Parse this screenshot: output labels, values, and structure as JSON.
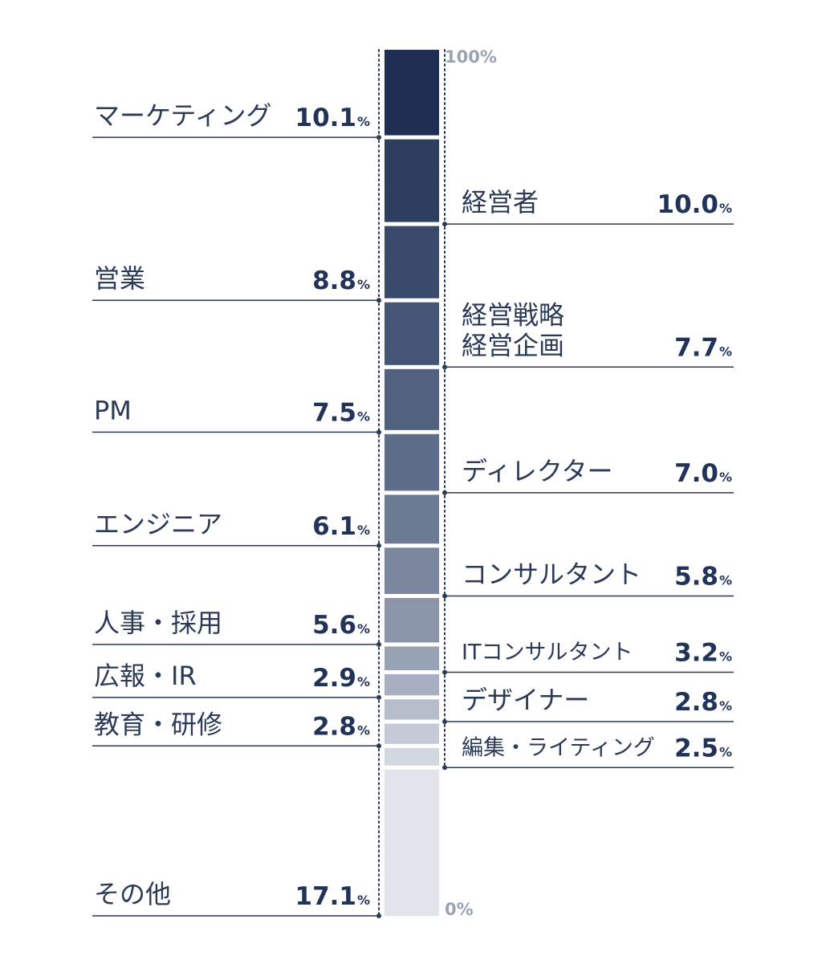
{
  "chart_data": {
    "type": "stacked-bar",
    "ylim": [
      0,
      100
    ],
    "grid": false,
    "legend": "none",
    "axis_labels": {
      "top": "100%",
      "bottom": "0%"
    },
    "unit": "%",
    "segments": [
      {
        "category": "マーケティング",
        "lines": [
          "マーケティング"
        ],
        "value": 10.1,
        "value_label": "10.1",
        "side": "left",
        "color": "#1f2f54"
      },
      {
        "category": "経営者",
        "lines": [
          "経営者"
        ],
        "value": 10.0,
        "value_label": "10.0",
        "side": "right",
        "color": "#2e3e5f"
      },
      {
        "category": "営業",
        "lines": [
          "営業"
        ],
        "value": 8.8,
        "value_label": "8.8",
        "side": "left",
        "color": "#3a4a6b"
      },
      {
        "category": "経営戦略 経営企画",
        "lines": [
          "経営戦略",
          "経営企画"
        ],
        "value": 7.7,
        "value_label": "7.7",
        "side": "right",
        "color": "#455576"
      },
      {
        "category": "PM",
        "lines": [
          "PM"
        ],
        "value": 7.5,
        "value_label": "7.5",
        "side": "left",
        "color": "#52617f"
      },
      {
        "category": "ディレクター",
        "lines": [
          "ディレクター"
        ],
        "value": 7.0,
        "value_label": "7.0",
        "side": "right",
        "color": "#5f6d89"
      },
      {
        "category": "エンジニア",
        "lines": [
          "エンジニア"
        ],
        "value": 6.1,
        "value_label": "6.1",
        "side": "left",
        "color": "#6d7a94"
      },
      {
        "category": "コンサルタント",
        "lines": [
          "コンサルタント"
        ],
        "value": 5.8,
        "value_label": "5.8",
        "side": "right",
        "color": "#7b879f"
      },
      {
        "category": "人事・採用",
        "lines": [
          "人事・採用"
        ],
        "value": 5.6,
        "value_label": "5.6",
        "side": "left",
        "color": "#8a95aa"
      },
      {
        "category": "ITコンサルタント",
        "lines": [
          "ITコンサルタント"
        ],
        "value": 3.2,
        "value_label": "3.2",
        "side": "right",
        "color": "#98a2b5"
      },
      {
        "category": "広報・IR",
        "lines": [
          "広報・IR"
        ],
        "value": 2.9,
        "value_label": "2.9",
        "side": "left",
        "color": "#a7afc0"
      },
      {
        "category": "デザイナー",
        "lines": [
          "デザイナー"
        ],
        "value": 2.8,
        "value_label": "2.8",
        "side": "right",
        "color": "#b6bdcb"
      },
      {
        "category": "教育・研修",
        "lines": [
          "教育・研修"
        ],
        "value": 2.8,
        "value_label": "2.8",
        "side": "left",
        "color": "#c5cad6"
      },
      {
        "category": "編集・ライティング",
        "lines": [
          "編集・ライティング"
        ],
        "value": 2.5,
        "value_label": "2.5",
        "side": "right",
        "color": "#d3d7e0"
      },
      {
        "category": "その他",
        "lines": [
          "その他"
        ],
        "value": 17.1,
        "value_label": "17.1",
        "side": "left",
        "color": "#e1e4ea"
      }
    ]
  }
}
